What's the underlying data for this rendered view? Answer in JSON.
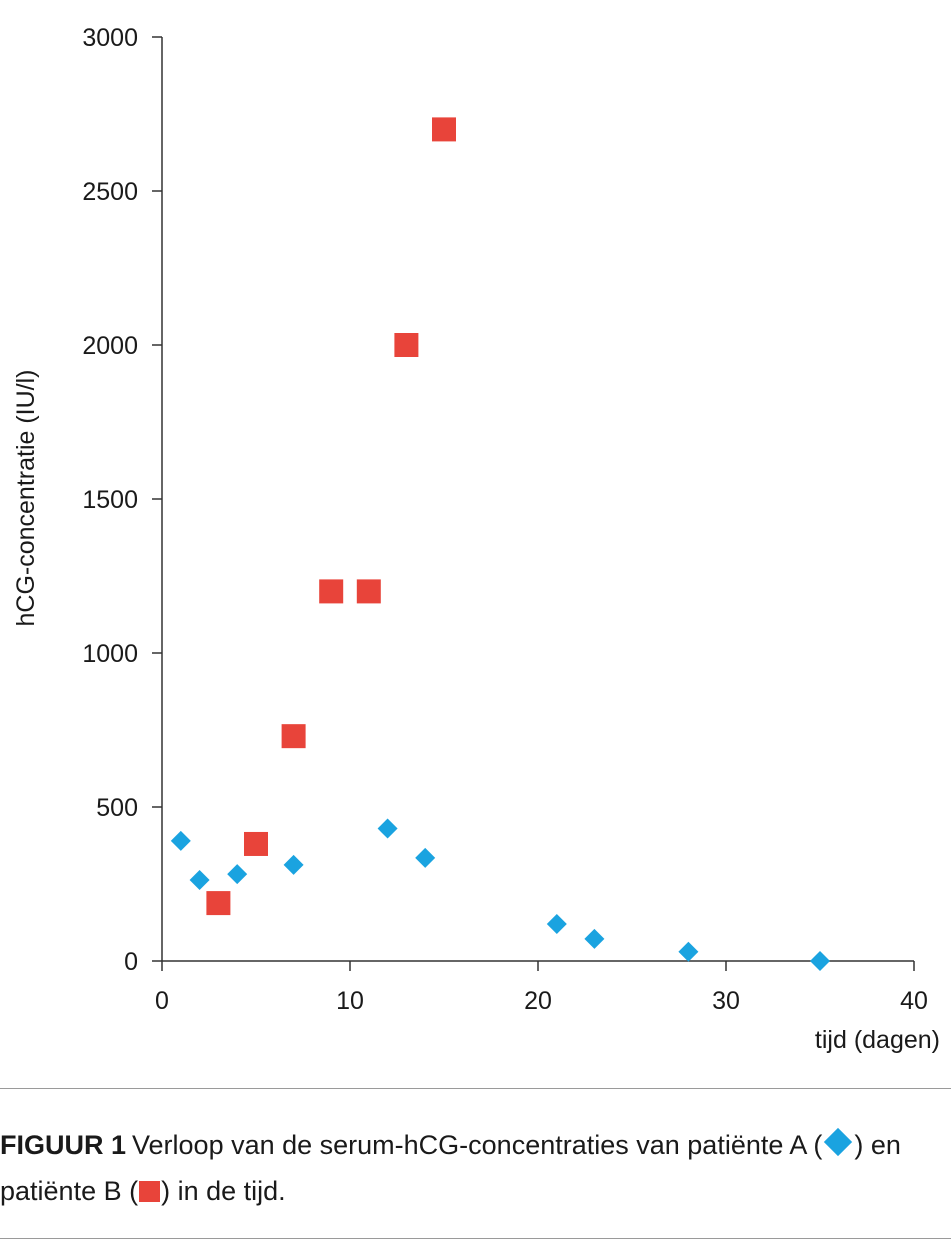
{
  "chart_data": {
    "type": "scatter",
    "xlabel": "tijd (dagen)",
    "ylabel": "hCG-concentratie (IU/l)",
    "xlim": [
      0,
      40
    ],
    "ylim": [
      0,
      3000
    ],
    "xticks": [
      0,
      10,
      20,
      30,
      40
    ],
    "yticks": [
      0,
      500,
      1000,
      1500,
      2000,
      2500,
      3000
    ],
    "grid": false,
    "legend": "none",
    "series": [
      {
        "marker": "diamond",
        "color": "#1aa3e0",
        "x": [
          1,
          2,
          4,
          7,
          12,
          14,
          21,
          23,
          28,
          35
        ],
        "y": [
          390,
          263,
          282,
          312,
          430,
          335,
          120,
          72,
          30,
          0
        ]
      },
      {
        "marker": "square",
        "color": "#e8443a",
        "x": [
          3,
          5,
          7,
          9,
          11,
          13,
          15
        ],
        "y": [
          188,
          380,
          730,
          1200,
          1200,
          2000,
          2700
        ]
      }
    ]
  },
  "caption": {
    "label": "FIGUUR 1",
    "text_part1": "Verloop van de serum-hCG-concentraties van patiënte A (",
    "text_part2": ") en patiënte B (",
    "text_part3": ") in de tijd."
  }
}
